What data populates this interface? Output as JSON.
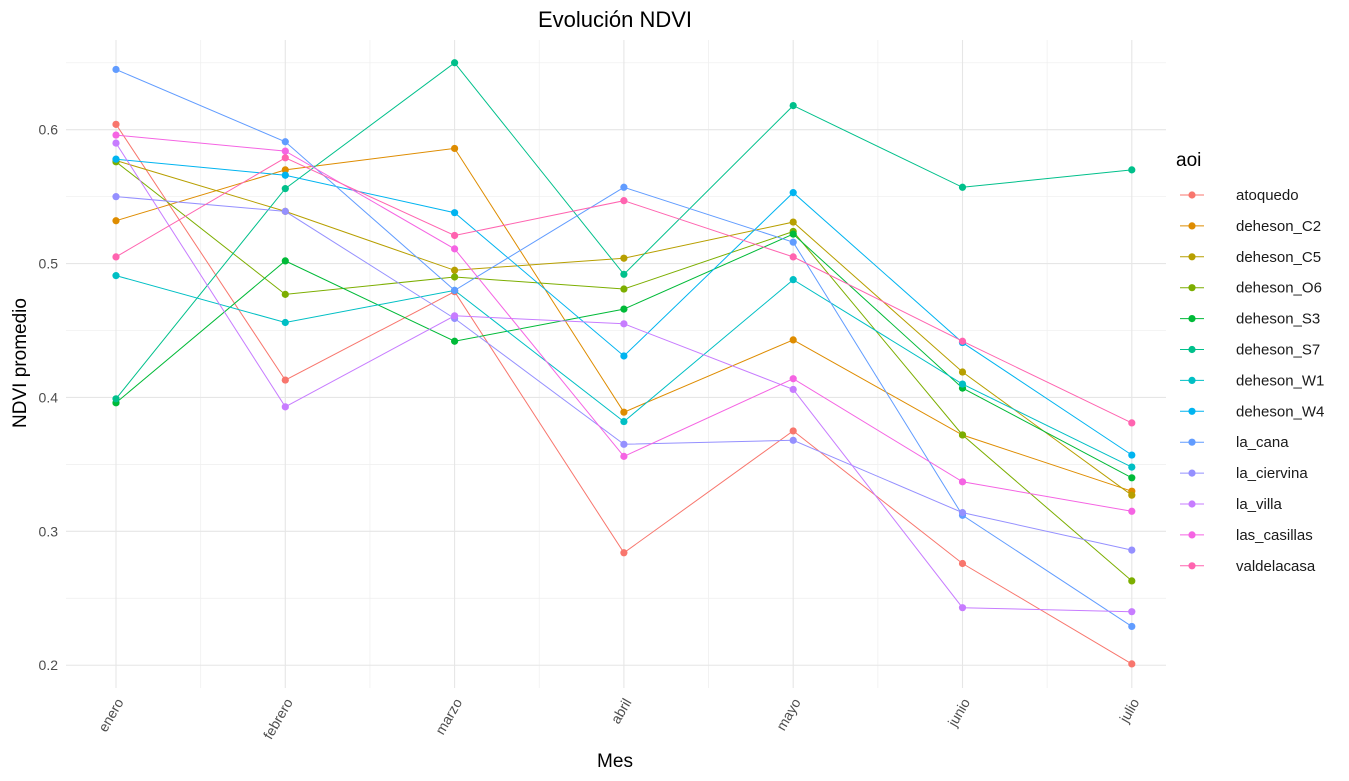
{
  "chart_data": {
    "type": "line",
    "title": "Evolución NDVI",
    "xlabel": "Mes",
    "ylabel": "NDVI promedio",
    "categories": [
      "enero",
      "febrero",
      "marzo",
      "abril",
      "mayo",
      "junio",
      "julio"
    ],
    "ylim": [
      0.183,
      0.667
    ],
    "yticks": [
      0.2,
      0.3,
      0.4,
      0.5,
      0.6
    ],
    "ytick_labels": [
      "0.2",
      "0.3",
      "0.4",
      "0.5",
      "0.6"
    ],
    "grid": true,
    "legend_title": "aoi",
    "legend_position": "right",
    "series": [
      {
        "name": "atoquedo",
        "color": "#F8766D",
        "values": [
          0.604,
          0.413,
          0.479,
          0.284,
          0.375,
          0.276,
          0.201
        ]
      },
      {
        "name": "deheson_C2",
        "color": "#DE8C00",
        "values": [
          0.532,
          0.57,
          0.586,
          0.389,
          0.443,
          0.372,
          0.33
        ]
      },
      {
        "name": "deheson_C5",
        "color": "#B79F00",
        "values": [
          0.577,
          0.539,
          0.495,
          0.504,
          0.531,
          0.419,
          0.327
        ]
      },
      {
        "name": "deheson_O6",
        "color": "#7CAE00",
        "values": [
          0.576,
          0.477,
          0.49,
          0.481,
          0.524,
          0.372,
          0.263
        ]
      },
      {
        "name": "deheson_S3",
        "color": "#00BA38",
        "values": [
          0.396,
          0.502,
          0.442,
          0.466,
          0.522,
          0.407,
          0.34
        ]
      },
      {
        "name": "deheson_S7",
        "color": "#00C08B",
        "values": [
          0.399,
          0.556,
          0.65,
          0.492,
          0.618,
          0.557,
          0.57
        ]
      },
      {
        "name": "deheson_W1",
        "color": "#00BFC4",
        "values": [
          0.491,
          0.456,
          0.48,
          0.382,
          0.488,
          0.41,
          0.348
        ]
      },
      {
        "name": "deheson_W4",
        "color": "#00B4F0",
        "values": [
          0.578,
          0.566,
          0.538,
          0.431,
          0.553,
          0.441,
          0.357
        ]
      },
      {
        "name": "la_cana",
        "color": "#619CFF",
        "values": [
          0.645,
          0.591,
          0.48,
          0.557,
          0.516,
          0.312,
          0.229
        ]
      },
      {
        "name": "la_ciervina",
        "color": "#9590FF",
        "values": [
          0.55,
          0.539,
          0.459,
          0.365,
          0.368,
          0.314,
          0.286
        ]
      },
      {
        "name": "la_villa",
        "color": "#C77CFF",
        "values": [
          0.59,
          0.393,
          0.461,
          0.455,
          0.406,
          0.243,
          0.24
        ]
      },
      {
        "name": "las_casillas",
        "color": "#F564E3",
        "values": [
          0.596,
          0.584,
          0.511,
          0.356,
          0.414,
          0.337,
          0.315
        ]
      },
      {
        "name": "valdelacasa",
        "color": "#FF64B0",
        "values": [
          0.505,
          0.579,
          0.521,
          0.547,
          0.505,
          0.442,
          0.381
        ]
      }
    ]
  }
}
